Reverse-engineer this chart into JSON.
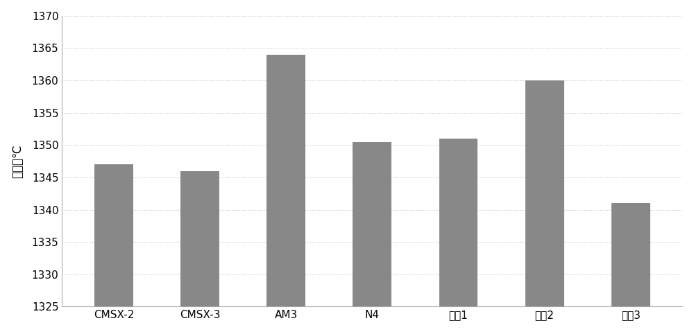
{
  "categories": [
    "CMSX-2",
    "CMSX-3",
    "AM3",
    "N4",
    "合金1",
    "合金2",
    "合金3"
  ],
  "values": [
    1347.0,
    1346.0,
    1364.0,
    1350.5,
    1351.0,
    1360.0,
    1341.0
  ],
  "bar_color": "#888888",
  "ylabel": "温度／℃",
  "ylim": [
    1325,
    1370
  ],
  "yticks": [
    1325,
    1330,
    1335,
    1340,
    1345,
    1350,
    1355,
    1360,
    1365,
    1370
  ],
  "background_color": "#ffffff",
  "grid_color": "#bbbbbb",
  "bar_width": 0.45,
  "figure_width": 10.0,
  "figure_height": 4.79,
  "tick_fontsize": 11,
  "label_fontsize": 12
}
